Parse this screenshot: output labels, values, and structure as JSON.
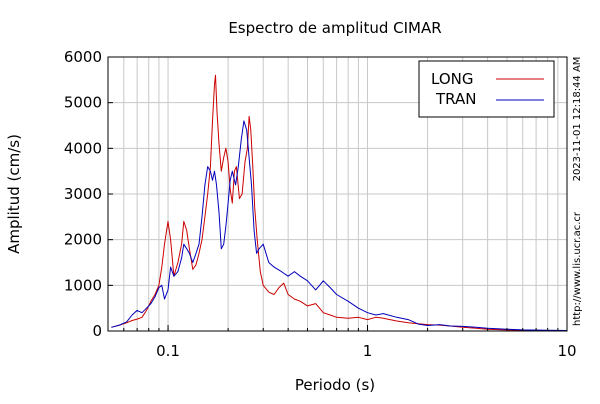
{
  "chart_data": {
    "type": "line",
    "title": "Espectro de amplitud CIMAR",
    "xlabel": "Periodo (s)",
    "ylabel": "Amplitud (cm/s)",
    "xscale": "log",
    "xlim": [
      0.05,
      10
    ],
    "ylim": [
      0,
      6000
    ],
    "x_ticks": [
      0.1,
      1,
      10
    ],
    "x_tick_labels": [
      "0.1",
      "1",
      "10"
    ],
    "y_ticks": [
      0,
      1000,
      2000,
      3000,
      4000,
      5000,
      6000
    ],
    "y_tick_labels": [
      "0",
      "1000",
      "2000",
      "3000",
      "4000",
      "5000",
      "6000"
    ],
    "grid": true,
    "legend_position": "top-right",
    "timestamp": "2023-11-01 12:18:44 AM",
    "source": "http://www.lis.ucr.ac.cr",
    "series": [
      {
        "name": "LONG",
        "color": "#cc0000",
        "x": [
          0.052,
          0.057,
          0.062,
          0.066,
          0.07,
          0.074,
          0.078,
          0.082,
          0.086,
          0.09,
          0.093,
          0.096,
          0.1,
          0.103,
          0.107,
          0.112,
          0.117,
          0.12,
          0.124,
          0.128,
          0.133,
          0.138,
          0.143,
          0.148,
          0.153,
          0.158,
          0.163,
          0.167,
          0.171,
          0.173,
          0.176,
          0.18,
          0.185,
          0.19,
          0.195,
          0.2,
          0.205,
          0.21,
          0.215,
          0.22,
          0.228,
          0.235,
          0.243,
          0.25,
          0.255,
          0.26,
          0.266,
          0.272,
          0.28,
          0.29,
          0.3,
          0.32,
          0.34,
          0.36,
          0.38,
          0.4,
          0.43,
          0.46,
          0.5,
          0.55,
          0.6,
          0.65,
          0.7,
          0.8,
          0.9,
          1.0,
          1.1,
          1.2,
          1.4,
          1.6,
          1.8,
          2.0,
          2.3,
          2.6,
          3.0,
          3.5,
          4.0,
          5.0,
          6.0,
          8.0,
          10.0
        ],
        "y": [
          80,
          130,
          180,
          230,
          260,
          300,
          450,
          650,
          800,
          1000,
          1400,
          1900,
          2400,
          2000,
          1200,
          1500,
          1900,
          2400,
          2200,
          1800,
          1350,
          1450,
          1700,
          2000,
          2500,
          3000,
          3600,
          4600,
          5400,
          5600,
          4800,
          4100,
          3500,
          3800,
          4000,
          3700,
          3100,
          2800,
          3500,
          3600,
          2900,
          3000,
          3700,
          4000,
          4700,
          4400,
          3600,
          2700,
          2000,
          1300,
          1000,
          850,
          800,
          950,
          1050,
          800,
          700,
          650,
          550,
          600,
          400,
          350,
          300,
          280,
          300,
          250,
          300,
          280,
          220,
          180,
          160,
          140,
          130,
          110,
          80,
          60,
          40,
          25,
          15,
          10,
          5
        ]
      },
      {
        "name": "TRAN",
        "color": "#0000bb",
        "x": [
          0.052,
          0.057,
          0.062,
          0.066,
          0.07,
          0.074,
          0.078,
          0.082,
          0.086,
          0.09,
          0.093,
          0.096,
          0.1,
          0.103,
          0.107,
          0.112,
          0.117,
          0.12,
          0.124,
          0.128,
          0.133,
          0.138,
          0.143,
          0.148,
          0.153,
          0.158,
          0.163,
          0.167,
          0.171,
          0.175,
          0.18,
          0.185,
          0.19,
          0.195,
          0.2,
          0.205,
          0.21,
          0.218,
          0.225,
          0.233,
          0.24,
          0.248,
          0.255,
          0.262,
          0.27,
          0.278,
          0.286,
          0.3,
          0.32,
          0.34,
          0.37,
          0.4,
          0.43,
          0.46,
          0.5,
          0.55,
          0.6,
          0.65,
          0.7,
          0.8,
          0.9,
          1.0,
          1.1,
          1.2,
          1.4,
          1.6,
          1.8,
          2.0,
          2.3,
          2.6,
          3.0,
          3.5,
          4.0,
          5.0,
          6.0,
          8.0,
          10.0
        ],
        "y": [
          80,
          130,
          200,
          350,
          450,
          400,
          500,
          600,
          750,
          950,
          1000,
          700,
          900,
          1400,
          1200,
          1300,
          1600,
          1900,
          1800,
          1700,
          1500,
          1700,
          1900,
          2500,
          3200,
          3600,
          3500,
          3300,
          3500,
          3200,
          2600,
          1800,
          1900,
          2300,
          2800,
          3300,
          3500,
          3200,
          3600,
          4200,
          4600,
          4400,
          3800,
          3200,
          2200,
          1700,
          1800,
          1900,
          1500,
          1400,
          1300,
          1200,
          1300,
          1200,
          1100,
          900,
          1100,
          950,
          800,
          650,
          500,
          400,
          350,
          380,
          300,
          250,
          150,
          120,
          140,
          110,
          100,
          80,
          60,
          40,
          25,
          15,
          10
        ]
      }
    ]
  }
}
